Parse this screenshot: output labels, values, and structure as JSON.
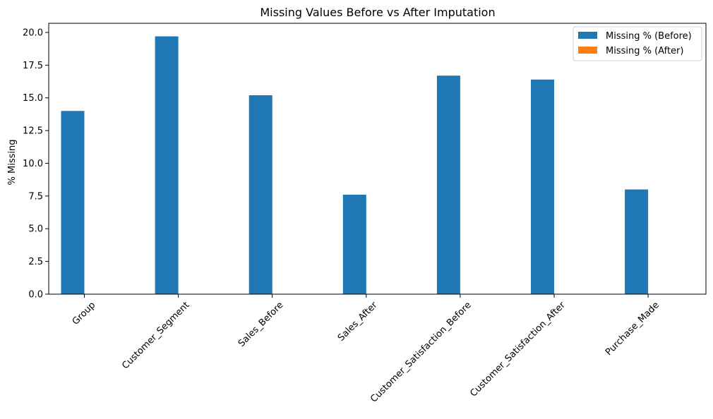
{
  "chart_data": {
    "type": "bar",
    "title": "Missing Values Before vs After Imputation",
    "xlabel": "",
    "ylabel": "% Missing",
    "categories": [
      "Group",
      "Customer_Segment",
      "Sales_Before",
      "Sales_After",
      "Customer_Satisfaction_Before",
      "Customer_Satisfaction_After",
      "Purchase_Made"
    ],
    "series": [
      {
        "name": "Missing % (Before)",
        "color": "#1f77b4",
        "values": [
          14.0,
          19.7,
          15.2,
          7.6,
          16.7,
          16.4,
          8.0
        ]
      },
      {
        "name": "Missing % (After)",
        "color": "#ff7f0e",
        "values": [
          0,
          0,
          0,
          0,
          0,
          0,
          0
        ]
      }
    ],
    "ylim": [
      0,
      20.7
    ],
    "yticks": [
      "0.0",
      "2.5",
      "5.0",
      "7.5",
      "10.0",
      "12.5",
      "15.0",
      "17.5",
      "20.0"
    ],
    "grid": false,
    "legend_position": "top-right"
  }
}
